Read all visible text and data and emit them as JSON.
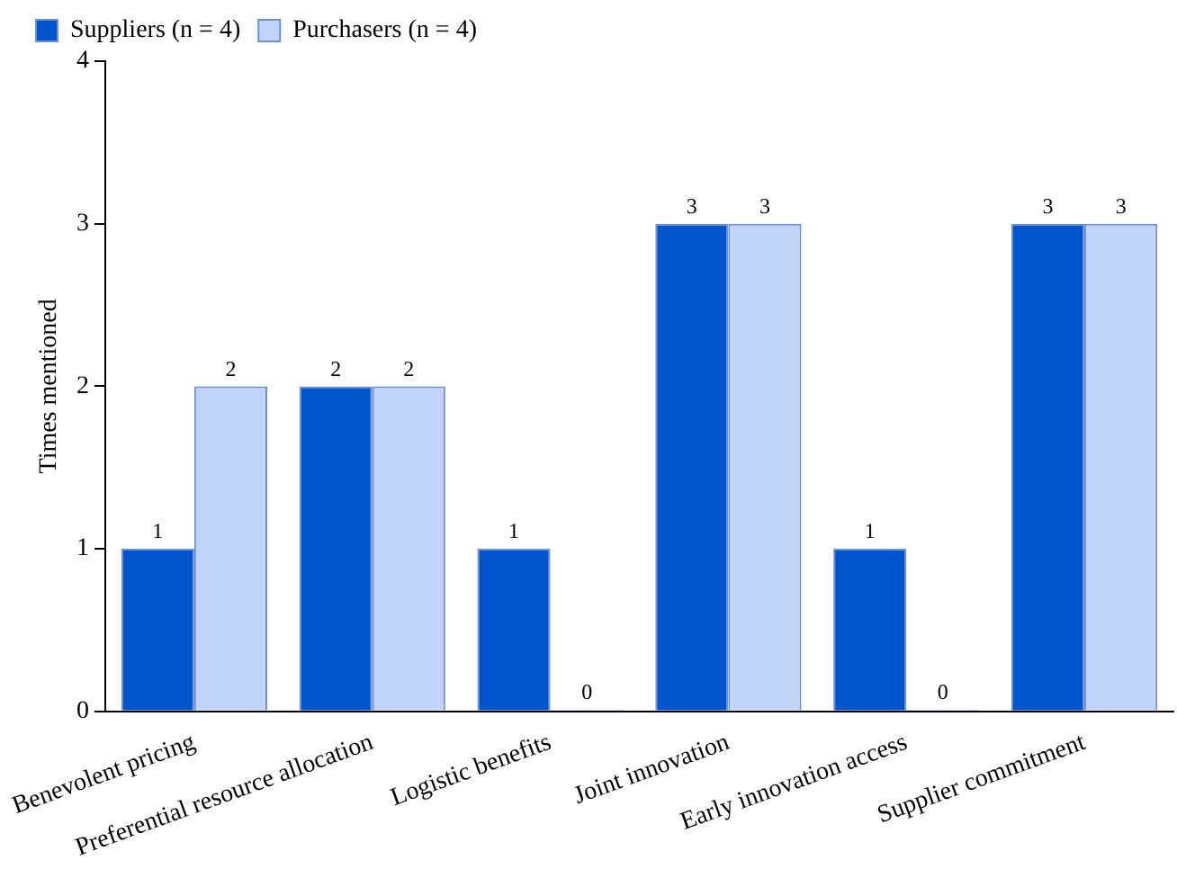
{
  "chart_data": {
    "type": "bar",
    "ylabel": "Times mentioned",
    "categories": [
      "Benevolent pricing",
      "Preferential resource allocation",
      "Logistic benefits",
      "Joint innovation",
      "Early innovation access",
      "Supplier commitment"
    ],
    "series": [
      {
        "name": "Suppliers (n = 4)",
        "color": "#0055cc",
        "values": [
          1,
          2,
          1,
          3,
          1,
          3
        ]
      },
      {
        "name": "Purchasers (n = 4)",
        "color": "#c2d4fa",
        "values": [
          2,
          2,
          0,
          3,
          0,
          3
        ]
      }
    ],
    "ylim": [
      0,
      4
    ],
    "yticks": [
      0,
      1,
      2,
      3,
      4
    ],
    "grid": false,
    "legend": "top left",
    "data_labels": true
  }
}
